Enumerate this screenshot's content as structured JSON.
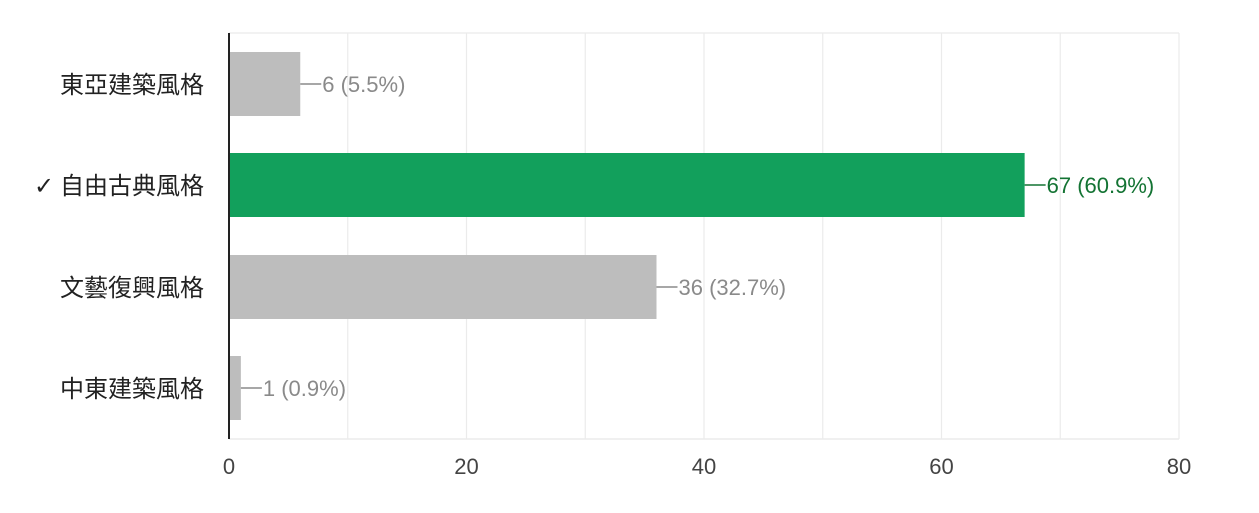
{
  "chart_data": {
    "type": "bar",
    "orientation": "horizontal",
    "categories": [
      "東亞建築風格",
      "自由古典風格",
      "文藝復興風格",
      "中東建築風格"
    ],
    "values": [
      6,
      67,
      36,
      1
    ],
    "data_labels": [
      "6 (5.5%)",
      "67 (60.9%)",
      "36 (32.7%)",
      "1 (0.9%)"
    ],
    "correct": [
      false,
      true,
      false,
      false
    ],
    "correct_marker": "✓",
    "title": "",
    "xlabel": "",
    "ylabel": "",
    "xlim": [
      0,
      80
    ],
    "x_ticks": [
      0,
      20,
      40,
      60,
      80
    ],
    "grid": true,
    "legend": "none",
    "colors": {
      "default_bar": "#bdbdbd",
      "correct_bar": "#12a05c",
      "default_label": "#8a8a8a",
      "correct_label": "#137333",
      "category_text": "#222222",
      "tick_text": "#444444",
      "grid": "#ebebeb",
      "axis": "#222222"
    }
  }
}
